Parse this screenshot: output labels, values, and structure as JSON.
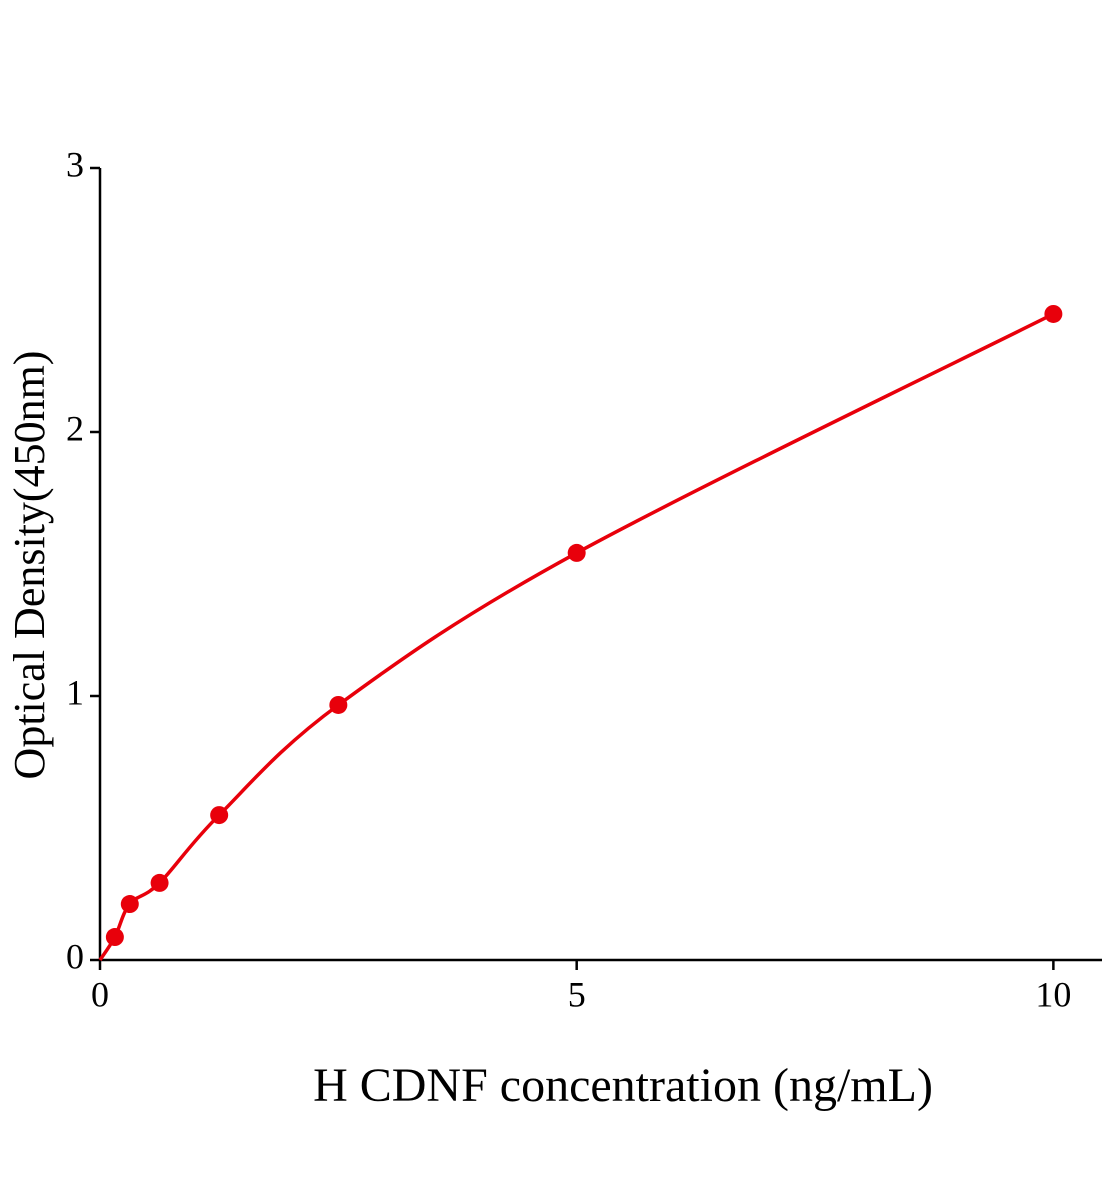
{
  "chart_data": {
    "type": "scatter",
    "x_label": "H CDNF concentration (ng/mL)",
    "y_label": "Optical Density(450nm)",
    "series": [
      {
        "color": "#e8000b",
        "x": [
          0.156,
          0.3125,
          0.625,
          1.25,
          2.5,
          5,
          10
        ],
        "values": [
          0.087,
          0.212,
          0.292,
          0.549,
          0.966,
          1.542,
          2.447
        ]
      }
    ],
    "xlim": [
      0,
      10.51
    ],
    "ylim": [
      0,
      3
    ],
    "xticks": [
      0,
      5,
      10
    ],
    "yticks": [
      0,
      1,
      2,
      3
    ],
    "fit_line": true,
    "grid": false
  }
}
